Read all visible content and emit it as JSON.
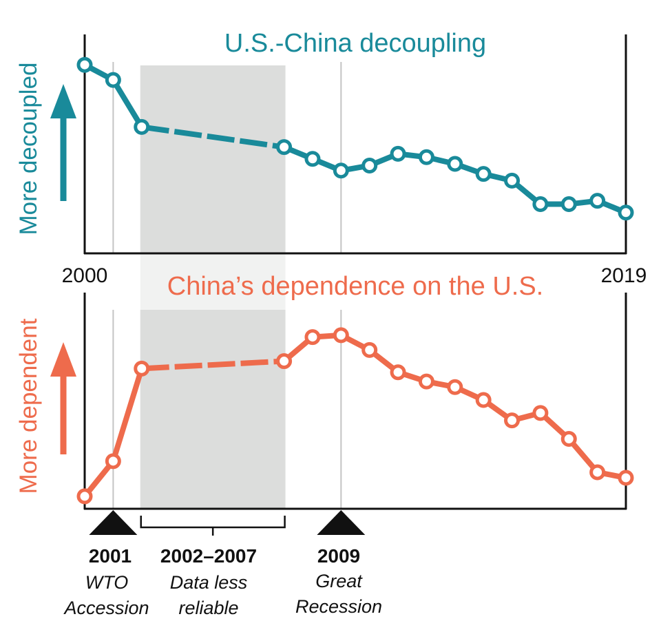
{
  "chart_data": [
    {
      "type": "line",
      "title": "U.S.-China decoupling",
      "ylabel": "More decoupled",
      "color": "#198a9a",
      "x": [
        2000,
        2001,
        2002,
        2007,
        2008,
        2009,
        2010,
        2011,
        2012,
        2013,
        2014,
        2015,
        2016,
        2017,
        2018,
        2019
      ],
      "values": [
        100,
        91,
        63,
        51,
        44,
        37,
        40,
        47,
        45,
        41,
        35,
        31,
        17,
        17,
        19,
        12
      ],
      "ylim": [
        0,
        105
      ],
      "xlim": [
        2000,
        2019
      ],
      "dashed_segment": [
        2002,
        2007
      ]
    },
    {
      "type": "line",
      "title": "China’s dependence on the U.S.",
      "ylabel": "More dependent",
      "color": "#ee6b4c",
      "x": [
        2000,
        2001,
        2002,
        2007,
        2008,
        2009,
        2010,
        2011,
        2012,
        2013,
        2014,
        2015,
        2016,
        2017,
        2018,
        2019
      ],
      "values": [
        3,
        22,
        72,
        76,
        89,
        90,
        82,
        70,
        65,
        62,
        55,
        44,
        48,
        34,
        16,
        13
      ],
      "ylim": [
        0,
        100
      ],
      "xlim": [
        2000,
        2019
      ],
      "dashed_segment": [
        2002,
        2007
      ]
    }
  ],
  "axis": {
    "start_label": "2000",
    "end_label": "2019"
  },
  "shaded_region": {
    "from": 2002,
    "to": 2007
  },
  "annotations": [
    {
      "year": 2001,
      "title": "2001",
      "line1": "WTO",
      "line2": "Accession",
      "marker": "triangle"
    },
    {
      "year": 2009,
      "title": "2009",
      "line1": "Great",
      "line2": "Recession",
      "marker": "triangle"
    },
    {
      "from": 2002,
      "to": 2007,
      "title": "2002–2007",
      "line1": "Data less",
      "line2": "reliable",
      "marker": "bracket"
    }
  ],
  "colors": {
    "shade": "#dcdddc",
    "vline": "#c4c4c4",
    "axis": "#111111"
  }
}
